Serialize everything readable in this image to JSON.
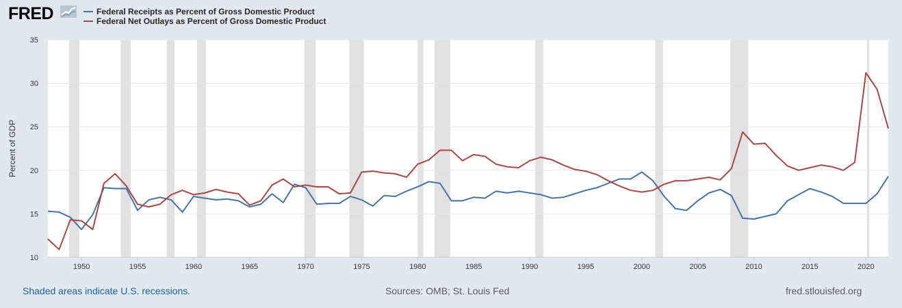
{
  "logo": {
    "text": "FRED"
  },
  "footer": {
    "recessions_note": "Shaded areas indicate U.S. recessions.",
    "sources": "Sources: OMB; St. Louis Fed",
    "site": "fred.stlouisfed.org"
  },
  "colors": {
    "background": "#e1e9f0",
    "receipts": "#4572a7",
    "outlays": "#aa4643",
    "recession": "#e1e1e1"
  },
  "chart_data": {
    "type": "line",
    "ylabel": "Percent of GDP",
    "xlim": [
      1947,
      2022
    ],
    "ylim": [
      10,
      35
    ],
    "x_ticks": [
      1950,
      1955,
      1960,
      1965,
      1970,
      1975,
      1980,
      1985,
      1990,
      1995,
      2000,
      2005,
      2010,
      2015,
      2020
    ],
    "y_ticks": [
      10,
      15,
      20,
      25,
      30,
      35
    ],
    "grid": true,
    "legend_placement": "top-left",
    "recessions": [
      [
        1948.9,
        1949.8
      ],
      [
        1953.5,
        1954.4
      ],
      [
        1957.6,
        1958.3
      ],
      [
        1960.3,
        1961.1
      ],
      [
        1969.9,
        1970.9
      ],
      [
        1973.9,
        1975.2
      ],
      [
        1980.0,
        1980.5
      ],
      [
        1981.5,
        1982.9
      ],
      [
        1990.5,
        1991.2
      ],
      [
        2001.2,
        2001.9
      ],
      [
        2007.9,
        2009.5
      ],
      [
        2020.1,
        2020.3
      ]
    ],
    "x": [
      1947,
      1948,
      1949,
      1950,
      1951,
      1952,
      1953,
      1954,
      1955,
      1956,
      1957,
      1958,
      1959,
      1960,
      1961,
      1962,
      1963,
      1964,
      1965,
      1966,
      1967,
      1968,
      1969,
      1970,
      1971,
      1972,
      1973,
      1974,
      1975,
      1976,
      1977,
      1978,
      1979,
      1980,
      1981,
      1982,
      1983,
      1984,
      1985,
      1986,
      1987,
      1988,
      1989,
      1990,
      1991,
      1992,
      1993,
      1994,
      1995,
      1996,
      1997,
      1998,
      1999,
      2000,
      2001,
      2002,
      2003,
      2004,
      2005,
      2006,
      2007,
      2008,
      2009,
      2010,
      2011,
      2012,
      2013,
      2014,
      2015,
      2016,
      2017,
      2018,
      2019,
      2020,
      2021,
      2022
    ],
    "series": [
      {
        "name": "Federal Receipts as Percent of Gross Domestic Product",
        "color": "#4572a7",
        "values": [
          15.3,
          15.2,
          14.6,
          13.2,
          14.9,
          18.0,
          17.9,
          17.9,
          15.4,
          16.6,
          16.9,
          16.6,
          15.2,
          17.0,
          16.8,
          16.6,
          16.7,
          16.5,
          15.8,
          16.1,
          17.3,
          16.3,
          18.4,
          18.0,
          16.1,
          16.2,
          16.2,
          17.0,
          16.6,
          15.9,
          17.1,
          17.0,
          17.6,
          18.1,
          18.7,
          18.5,
          16.5,
          16.5,
          16.9,
          16.8,
          17.6,
          17.4,
          17.6,
          17.4,
          17.2,
          16.8,
          16.9,
          17.3,
          17.7,
          18.0,
          18.5,
          19.0,
          19.0,
          19.8,
          18.8,
          17.0,
          15.6,
          15.4,
          16.5,
          17.4,
          17.8,
          17.1,
          14.5,
          14.4,
          14.7,
          15.0,
          16.5,
          17.2,
          17.9,
          17.5,
          17.0,
          16.2,
          16.2,
          16.2,
          17.3,
          19.3
        ]
      },
      {
        "name": "Federal Net Outlays as Percent of Gross Domestic Product",
        "color": "#aa4643",
        "values": [
          12.1,
          10.9,
          14.3,
          14.2,
          13.2,
          18.5,
          19.6,
          18.2,
          16.1,
          15.8,
          16.1,
          17.2,
          17.7,
          17.2,
          17.4,
          17.8,
          17.5,
          17.3,
          16.0,
          16.5,
          18.3,
          19.0,
          18.1,
          18.3,
          18.1,
          18.1,
          17.3,
          17.4,
          19.8,
          19.9,
          19.7,
          19.6,
          19.2,
          20.7,
          21.2,
          22.3,
          22.3,
          21.1,
          21.8,
          21.6,
          20.7,
          20.4,
          20.3,
          21.1,
          21.5,
          21.2,
          20.6,
          20.1,
          19.9,
          19.5,
          18.8,
          18.2,
          17.7,
          17.5,
          17.7,
          18.4,
          18.8,
          18.8,
          19.0,
          19.2,
          18.9,
          20.2,
          24.4,
          23.0,
          23.1,
          21.7,
          20.5,
          20.0,
          20.3,
          20.6,
          20.4,
          20.0,
          20.9,
          31.2,
          29.3,
          24.8
        ]
      }
    ]
  }
}
